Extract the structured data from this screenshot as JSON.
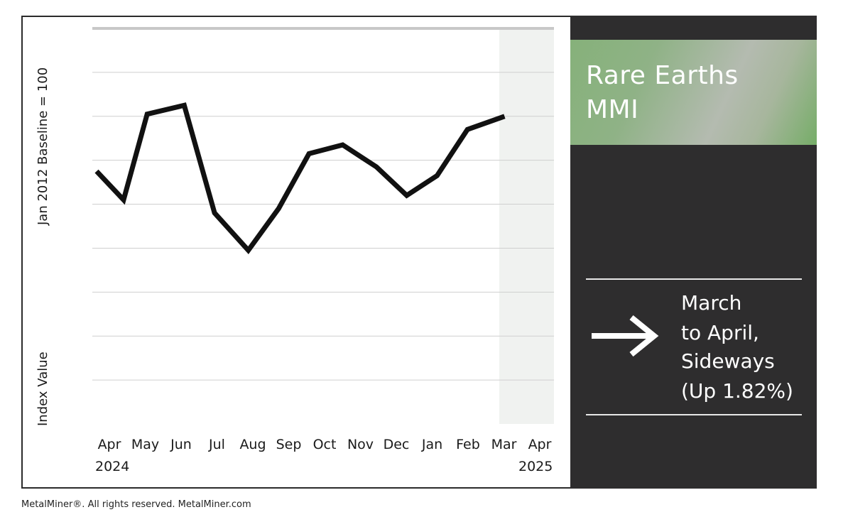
{
  "chart_data": {
    "type": "line",
    "title": "Rare Earths MMI",
    "ylabel_top": "Jan 2012 Baseline = 100",
    "ylabel_bottom": "Index Value",
    "categories": [
      "Apr",
      "May",
      "Jun",
      "Jul",
      "Aug",
      "Sep",
      "Oct",
      "Nov",
      "Dec",
      "Jan",
      "Feb",
      "Mar",
      "Apr"
    ],
    "year_labels": {
      "start": "2024",
      "end": "2025"
    },
    "series": [
      {
        "x": [
          "Apr 2024",
          "Apr/May 2024",
          "May 2024",
          "Jun 2024",
          "Jul 2024",
          "Aug 2024",
          "Sep 2024",
          "Oct 2024",
          "Nov 2024",
          "Dec 2024",
          "Jan 2025",
          "Feb 2025",
          "Mar 2025",
          "Apr 2025"
        ],
        "values": [
          5.75,
          5.1,
          7.05,
          7.25,
          4.8,
          3.95,
          4.9,
          6.15,
          6.35,
          5.85,
          5.2,
          5.65,
          6.7,
          7.0
        ]
      }
    ],
    "ylim": [
      0,
      9
    ],
    "y_tick_labels_shown": false,
    "grid": true,
    "highlight_region": "Mar–Apr 2025",
    "line_color": "#111111"
  },
  "panel": {
    "title_lines": [
      "Rare Earths",
      "MMI"
    ],
    "change_lines": [
      "March",
      "to April,",
      "Sideways",
      "(Up 1.82%)"
    ],
    "arrow_icon": "right-arrow-icon",
    "title_gradient_colors": [
      "#86b17a",
      "#b4bbb0",
      "#76ad68"
    ],
    "background": "#2e2d2e"
  },
  "footer": "MetalMiner®. All rights reserved. MetalMiner.com"
}
